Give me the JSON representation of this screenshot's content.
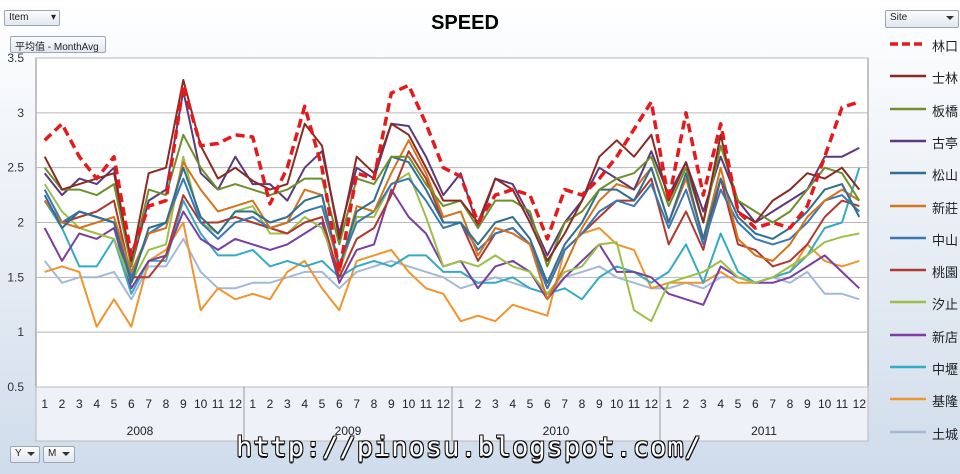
{
  "filters": {
    "item_label": "Item",
    "measure_label": "平均值 - MonthAvg",
    "site_label": "Site",
    "y_label": "Y",
    "m_label": "M"
  },
  "watermark": "http://pinosu.blogspot.com/",
  "chart_data": {
    "type": "line",
    "title": "SPEED",
    "ylim": [
      0.5,
      3.5
    ],
    "yticks": [
      "0.5",
      "1",
      "1.5",
      "2",
      "2.5",
      "3",
      "3.5"
    ],
    "grid": true,
    "legend_position": "right",
    "months": [
      "1",
      "2",
      "3",
      "4",
      "5",
      "6",
      "7",
      "8",
      "9",
      "10",
      "11",
      "12",
      "1",
      "2",
      "3",
      "4",
      "5",
      "6",
      "7",
      "8",
      "9",
      "10",
      "11",
      "12",
      "1",
      "2",
      "3",
      "4",
      "5",
      "6",
      "7",
      "8",
      "9",
      "10",
      "11",
      "12",
      "1",
      "2",
      "3",
      "4",
      "5",
      "6",
      "7",
      "8",
      "9",
      "10",
      "11",
      "12"
    ],
    "years": [
      "2008",
      "2009",
      "2010",
      "2011"
    ],
    "series": [
      {
        "name": "林口",
        "color": "#e41a1c",
        "dashed": true,
        "values": [
          2.75,
          2.9,
          2.6,
          2.4,
          2.6,
          1.7,
          2.15,
          2.2,
          3.25,
          2.7,
          2.72,
          2.8,
          2.78,
          2.17,
          2.5,
          3.06,
          2.5,
          1.55,
          2.45,
          2.4,
          3.18,
          3.25,
          2.9,
          2.5,
          2.42,
          2.0,
          2.25,
          2.3,
          2.25,
          1.85,
          2.3,
          2.25,
          2.4,
          2.6,
          2.85,
          3.1,
          2.2,
          3.0,
          2.25,
          2.9,
          2.1,
          1.95,
          2.0,
          1.95,
          2.15,
          2.6,
          3.05,
          3.1
        ]
      },
      {
        "name": "士林",
        "color": "#8b2a22",
        "values": [
          2.6,
          2.3,
          2.35,
          2.4,
          2.45,
          1.65,
          2.45,
          2.5,
          3.3,
          2.7,
          2.4,
          2.5,
          2.38,
          2.3,
          2.35,
          2.9,
          2.7,
          1.85,
          2.6,
          2.45,
          2.9,
          2.8,
          2.5,
          2.2,
          2.2,
          2.0,
          2.4,
          2.3,
          2.0,
          1.65,
          1.9,
          2.2,
          2.6,
          2.75,
          2.6,
          2.8,
          2.2,
          2.55,
          2.0,
          2.8,
          2.1,
          2.0,
          2.2,
          2.3,
          2.45,
          2.4,
          2.5,
          2.3
        ]
      },
      {
        "name": "板橋",
        "color": "#6e8f2c",
        "values": [
          2.5,
          2.3,
          2.3,
          2.25,
          2.35,
          1.6,
          2.3,
          2.25,
          2.8,
          2.5,
          2.3,
          2.35,
          2.3,
          2.25,
          2.3,
          2.4,
          2.4,
          1.8,
          2.4,
          2.35,
          2.6,
          2.6,
          2.35,
          2.15,
          2.2,
          1.95,
          2.2,
          2.2,
          2.1,
          1.6,
          2.0,
          2.1,
          2.3,
          2.4,
          2.45,
          2.6,
          2.15,
          2.5,
          2.0,
          2.7,
          2.2,
          2.1,
          2.0,
          2.1,
          2.3,
          2.5,
          2.45,
          2.2
        ]
      },
      {
        "name": "古亭",
        "color": "#5b3a7d",
        "values": [
          2.45,
          2.25,
          2.4,
          2.35,
          2.5,
          1.6,
          2.2,
          2.3,
          3.2,
          2.45,
          2.3,
          2.6,
          2.35,
          2.35,
          2.2,
          2.5,
          2.65,
          1.9,
          2.5,
          2.4,
          2.9,
          2.88,
          2.6,
          2.25,
          2.45,
          1.95,
          2.4,
          2.35,
          2.05,
          1.7,
          2.0,
          2.2,
          2.5,
          2.4,
          2.3,
          2.65,
          2.25,
          2.55,
          2.1,
          2.6,
          2.2,
          2.0,
          2.1,
          2.2,
          2.3,
          2.6,
          2.6,
          2.68
        ]
      },
      {
        "name": "松山",
        "color": "#2f6f8f",
        "values": [
          2.25,
          1.95,
          2.1,
          2.05,
          2.0,
          1.45,
          1.95,
          2.0,
          2.5,
          2.05,
          1.9,
          2.1,
          2.1,
          2.0,
          2.05,
          2.2,
          2.25,
          1.6,
          2.1,
          2.2,
          2.6,
          2.55,
          2.3,
          2.0,
          2.0,
          1.8,
          2.0,
          2.05,
          1.85,
          1.45,
          1.8,
          2.0,
          2.3,
          2.3,
          2.2,
          2.5,
          2.0,
          2.45,
          1.85,
          2.4,
          2.05,
          1.9,
          1.85,
          1.95,
          2.1,
          2.3,
          2.35,
          2.05
        ]
      },
      {
        "name": "新莊",
        "color": "#d4741c",
        "values": [
          2.2,
          2.0,
          1.95,
          2.0,
          2.05,
          1.55,
          1.9,
          1.95,
          2.55,
          2.3,
          2.1,
          2.15,
          2.2,
          1.95,
          2.0,
          2.3,
          2.25,
          1.55,
          2.15,
          2.1,
          2.45,
          2.75,
          2.45,
          2.05,
          2.1,
          1.7,
          1.95,
          1.9,
          1.8,
          1.3,
          1.6,
          1.95,
          2.2,
          2.35,
          2.3,
          2.5,
          2.0,
          2.4,
          1.85,
          2.5,
          1.85,
          1.7,
          1.65,
          1.8,
          2.05,
          2.2,
          2.3,
          2.2
        ]
      },
      {
        "name": "中山",
        "color": "#3b77b4",
        "values": [
          2.3,
          2.0,
          2.1,
          2.05,
          2.0,
          1.5,
          1.9,
          2.0,
          2.4,
          2.0,
          1.85,
          2.0,
          2.05,
          1.95,
          2.0,
          2.1,
          2.15,
          1.6,
          2.0,
          2.1,
          2.35,
          2.4,
          2.2,
          1.95,
          2.0,
          1.75,
          1.9,
          1.95,
          1.8,
          1.4,
          1.75,
          1.9,
          2.1,
          2.2,
          2.15,
          2.35,
          1.95,
          2.3,
          1.8,
          2.3,
          2.0,
          1.85,
          1.8,
          1.85,
          2.0,
          2.2,
          2.25,
          2.1
        ]
      },
      {
        "name": "桃園",
        "color": "#b0392f",
        "values": [
          2.2,
          2.0,
          2.05,
          2.1,
          2.2,
          1.5,
          1.5,
          1.7,
          2.25,
          2.0,
          2.0,
          2.05,
          2.0,
          1.95,
          1.9,
          2.0,
          2.05,
          1.5,
          1.85,
          1.95,
          2.25,
          2.65,
          2.4,
          2.0,
          2.0,
          1.65,
          1.9,
          1.95,
          1.8,
          1.4,
          1.75,
          1.9,
          2.05,
          2.2,
          2.2,
          2.4,
          1.8,
          2.1,
          1.75,
          2.4,
          1.8,
          1.75,
          1.6,
          1.65,
          1.8,
          2.05,
          2.2,
          2.15
        ]
      },
      {
        "name": "汐止",
        "color": "#9bc04a",
        "values": [
          2.35,
          2.1,
          1.95,
          1.9,
          1.85,
          1.45,
          1.75,
          1.8,
          2.6,
          2.0,
          1.9,
          2.1,
          2.15,
          1.9,
          1.9,
          2.05,
          1.95,
          1.55,
          2.05,
          2.05,
          2.35,
          2.45,
          2.05,
          1.6,
          1.65,
          1.6,
          1.7,
          1.6,
          1.55,
          1.35,
          1.55,
          1.6,
          1.8,
          1.82,
          1.2,
          1.1,
          1.45,
          1.5,
          1.55,
          1.65,
          1.5,
          1.45,
          1.5,
          1.6,
          1.7,
          1.82,
          1.87,
          1.9
        ]
      },
      {
        "name": "新店",
        "color": "#7a3fa0",
        "values": [
          1.95,
          1.65,
          1.9,
          1.85,
          1.95,
          1.4,
          1.65,
          1.7,
          2.1,
          1.85,
          1.75,
          1.85,
          1.8,
          1.75,
          1.8,
          1.9,
          2.0,
          1.45,
          1.75,
          1.8,
          2.3,
          2.05,
          1.9,
          1.6,
          1.65,
          1.4,
          1.6,
          1.65,
          1.55,
          1.3,
          1.5,
          1.65,
          1.8,
          1.55,
          1.55,
          1.5,
          1.35,
          1.3,
          1.25,
          1.6,
          1.5,
          1.45,
          1.45,
          1.5,
          1.6,
          1.7,
          1.55,
          1.4
        ]
      },
      {
        "name": "中壢",
        "color": "#34abc4",
        "values": [
          2.2,
          1.95,
          1.6,
          1.6,
          1.85,
          1.35,
          1.65,
          1.65,
          2.2,
          1.9,
          1.7,
          1.7,
          1.75,
          1.6,
          1.65,
          1.6,
          1.65,
          1.5,
          1.6,
          1.65,
          1.6,
          1.7,
          1.7,
          1.55,
          1.55,
          1.45,
          1.45,
          1.5,
          1.4,
          1.35,
          1.4,
          1.3,
          1.5,
          1.6,
          1.55,
          1.45,
          1.55,
          1.8,
          1.45,
          1.9,
          1.55,
          1.45,
          1.5,
          1.55,
          1.7,
          1.95,
          2.0,
          2.5
        ]
      },
      {
        "name": "基隆",
        "color": "#f0952d",
        "values": [
          1.55,
          1.6,
          1.55,
          1.05,
          1.3,
          1.05,
          1.65,
          1.75,
          2.0,
          1.2,
          1.4,
          1.3,
          1.35,
          1.3,
          1.55,
          1.65,
          1.4,
          1.2,
          1.65,
          1.7,
          1.75,
          1.55,
          1.4,
          1.35,
          1.1,
          1.15,
          1.1,
          1.25,
          1.2,
          1.15,
          1.75,
          1.9,
          1.95,
          1.8,
          1.75,
          1.4,
          1.45,
          1.45,
          1.45,
          1.55,
          1.45,
          1.45,
          1.5,
          1.55,
          1.8,
          1.65,
          1.6,
          1.65
        ]
      },
      {
        "name": "土城",
        "color": "#a4b8d8",
        "values": [
          1.65,
          1.45,
          1.5,
          1.5,
          1.55,
          1.3,
          1.6,
          1.6,
          1.85,
          1.55,
          1.4,
          1.4,
          1.45,
          1.45,
          1.5,
          1.55,
          1.55,
          1.4,
          1.55,
          1.6,
          1.65,
          1.6,
          1.55,
          1.5,
          1.4,
          1.45,
          1.5,
          1.45,
          1.4,
          1.35,
          1.5,
          1.55,
          1.6,
          1.5,
          1.45,
          1.4,
          1.4,
          1.45,
          1.4,
          1.5,
          1.5,
          1.45,
          1.5,
          1.45,
          1.55,
          1.35,
          1.35,
          1.3
        ]
      }
    ]
  }
}
